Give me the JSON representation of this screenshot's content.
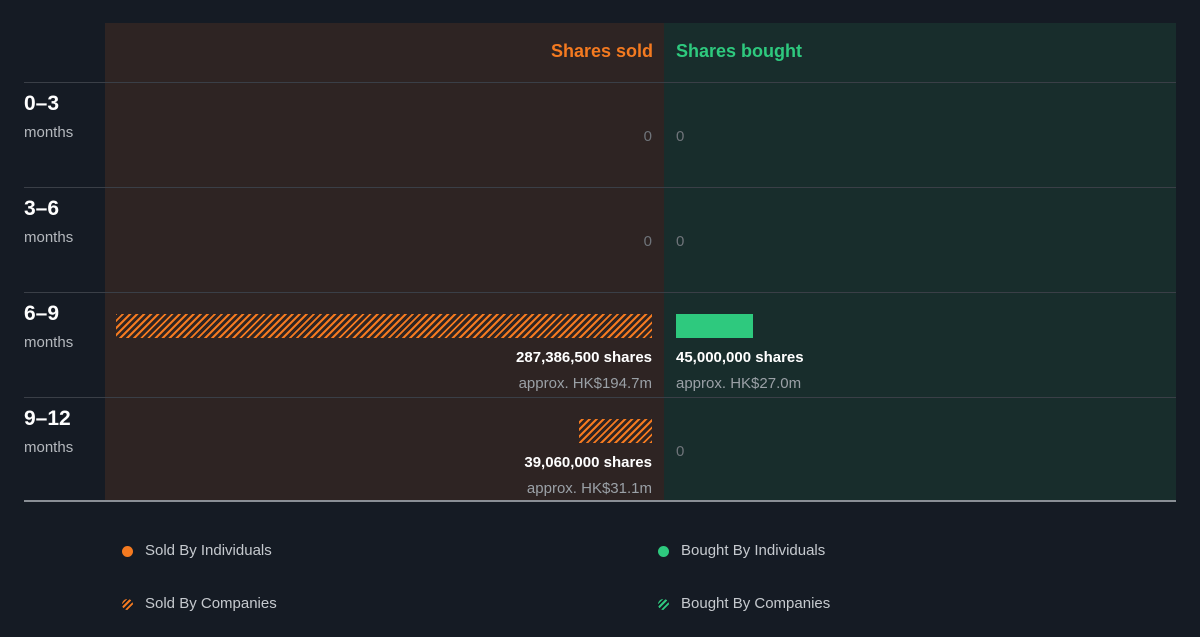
{
  "chart_data": {
    "type": "bar",
    "orientation": "horizontal-diverging",
    "headers": {
      "sold": "Shares sold",
      "bought": "Shares bought"
    },
    "colors": {
      "sold": "#f47a20",
      "bought": "#2ec97e",
      "background": "#151b24",
      "sold_column_bg": "#2e2423",
      "bought_column_bg": "#182d2c"
    },
    "max_value": 287386500,
    "rows": [
      {
        "range": "0–3",
        "unit": "months",
        "sold": {
          "value": 0,
          "companies": 0,
          "individuals": 0,
          "label": "0",
          "approx": ""
        },
        "bought": {
          "value": 0,
          "companies": 0,
          "individuals": 0,
          "label": "0",
          "approx": ""
        }
      },
      {
        "range": "3–6",
        "unit": "months",
        "sold": {
          "value": 0,
          "companies": 0,
          "individuals": 0,
          "label": "0",
          "approx": ""
        },
        "bought": {
          "value": 0,
          "companies": 0,
          "individuals": 0,
          "label": "0",
          "approx": ""
        }
      },
      {
        "range": "6–9",
        "unit": "months",
        "sold": {
          "value": 287386500,
          "companies": 287386500,
          "individuals": 0,
          "label": "287,386,500 shares",
          "approx": "approx. HK$194.7m"
        },
        "bought": {
          "value": 45000000,
          "companies": 0,
          "individuals": 45000000,
          "label": "45,000,000 shares",
          "approx": "approx. HK$27.0m"
        }
      },
      {
        "range": "9–12",
        "unit": "months",
        "sold": {
          "value": 39060000,
          "companies": 39060000,
          "individuals": 0,
          "label": "39,060,000 shares",
          "approx": "approx. HK$31.1m"
        },
        "bought": {
          "value": 0,
          "companies": 0,
          "individuals": 0,
          "label": "0",
          "approx": ""
        }
      }
    ],
    "legend": [
      {
        "label": "Sold By Individuals",
        "kind": "sold-individuals"
      },
      {
        "label": "Bought By Individuals",
        "kind": "bought-individuals"
      },
      {
        "label": "Sold By Companies",
        "kind": "sold-companies"
      },
      {
        "label": "Bought By Companies",
        "kind": "bought-companies"
      }
    ]
  }
}
